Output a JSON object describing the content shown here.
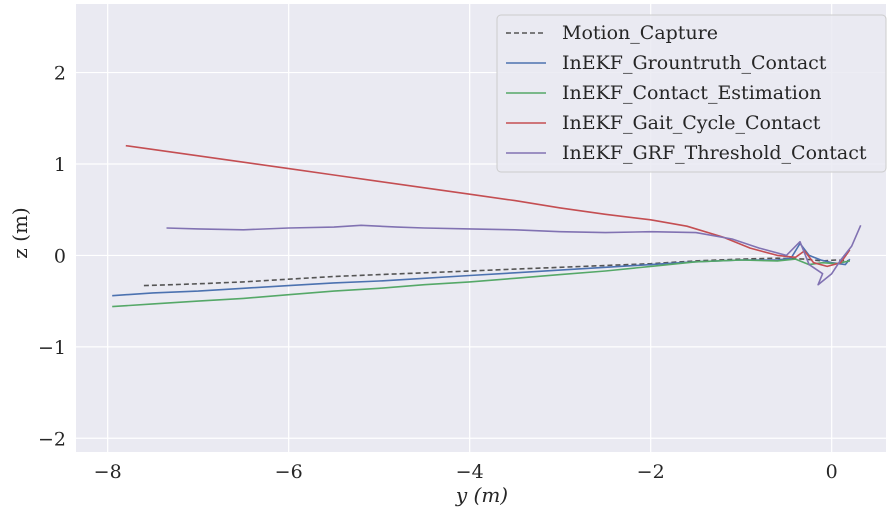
{
  "chart_data": {
    "type": "line",
    "xlabel": "y (m)",
    "ylabel": "z (m)",
    "xlim": [
      -8.35,
      0.6
    ],
    "ylim": [
      -2.15,
      2.75
    ],
    "xticks": [
      -8,
      -6,
      -4,
      -2,
      0
    ],
    "yticks": [
      -2,
      -1,
      0,
      1,
      2
    ],
    "xtick_labels": [
      "−8",
      "−6",
      "−4",
      "−2",
      "0"
    ],
    "ytick_labels": [
      "−2",
      "−1",
      "0",
      "1",
      "2"
    ],
    "grid": true,
    "legend_position": "top-right",
    "background": "#eaeaf2",
    "series": [
      {
        "name": "Motion_Capture",
        "color": "#555555",
        "dashed": true,
        "points": [
          [
            -7.6,
            -0.33
          ],
          [
            -7.0,
            -0.31
          ],
          [
            -6.5,
            -0.29
          ],
          [
            -6.0,
            -0.26
          ],
          [
            -5.5,
            -0.23
          ],
          [
            -5.0,
            -0.21
          ],
          [
            -4.5,
            -0.19
          ],
          [
            -4.0,
            -0.17
          ],
          [
            -3.5,
            -0.15
          ],
          [
            -3.0,
            -0.13
          ],
          [
            -2.5,
            -0.11
          ],
          [
            -2.0,
            -0.09
          ],
          [
            -1.5,
            -0.06
          ],
          [
            -1.0,
            -0.04
          ],
          [
            -0.6,
            -0.03
          ],
          [
            -0.3,
            -0.04
          ],
          [
            -0.1,
            -0.06
          ],
          [
            0.05,
            -0.05
          ],
          [
            0.2,
            -0.06
          ]
        ]
      },
      {
        "name": "InEKF_Grountruth_Contact",
        "color": "#4c72b0",
        "dashed": false,
        "points": [
          [
            -7.95,
            -0.44
          ],
          [
            -7.5,
            -0.41
          ],
          [
            -7.0,
            -0.39
          ],
          [
            -6.5,
            -0.36
          ],
          [
            -6.0,
            -0.33
          ],
          [
            -5.5,
            -0.3
          ],
          [
            -5.0,
            -0.28
          ],
          [
            -4.5,
            -0.25
          ],
          [
            -4.0,
            -0.22
          ],
          [
            -3.5,
            -0.19
          ],
          [
            -3.0,
            -0.16
          ],
          [
            -2.5,
            -0.13
          ],
          [
            -2.0,
            -0.1
          ],
          [
            -1.5,
            -0.07
          ],
          [
            -1.0,
            -0.05
          ],
          [
            -0.6,
            -0.05
          ],
          [
            -0.45,
            -0.03
          ],
          [
            -0.35,
            0.13
          ],
          [
            -0.25,
            0.0
          ],
          [
            -0.12,
            -0.05
          ],
          [
            0.0,
            -0.08
          ],
          [
            0.15,
            -0.1
          ],
          [
            0.2,
            -0.04
          ]
        ]
      },
      {
        "name": "InEKF_Contact_Estimation",
        "color": "#55a868",
        "dashed": false,
        "points": [
          [
            -7.95,
            -0.56
          ],
          [
            -7.5,
            -0.53
          ],
          [
            -7.0,
            -0.5
          ],
          [
            -6.5,
            -0.47
          ],
          [
            -6.0,
            -0.43
          ],
          [
            -5.5,
            -0.39
          ],
          [
            -5.0,
            -0.36
          ],
          [
            -4.5,
            -0.32
          ],
          [
            -4.0,
            -0.29
          ],
          [
            -3.5,
            -0.25
          ],
          [
            -3.0,
            -0.21
          ],
          [
            -2.5,
            -0.17
          ],
          [
            -2.0,
            -0.12
          ],
          [
            -1.5,
            -0.07
          ],
          [
            -1.0,
            -0.05
          ],
          [
            -0.6,
            -0.06
          ],
          [
            -0.4,
            -0.04
          ],
          [
            -0.25,
            -0.1
          ],
          [
            -0.1,
            -0.08
          ],
          [
            0.05,
            -0.09
          ],
          [
            0.2,
            -0.06
          ]
        ]
      },
      {
        "name": "InEKF_Gait_Cycle_Contact",
        "color": "#c44e52",
        "dashed": false,
        "points": [
          [
            -7.8,
            1.2
          ],
          [
            -7.5,
            1.16
          ],
          [
            -7.0,
            1.09
          ],
          [
            -6.5,
            1.02
          ],
          [
            -6.0,
            0.95
          ],
          [
            -5.5,
            0.88
          ],
          [
            -5.0,
            0.81
          ],
          [
            -4.5,
            0.74
          ],
          [
            -4.0,
            0.67
          ],
          [
            -3.5,
            0.6
          ],
          [
            -3.0,
            0.52
          ],
          [
            -2.5,
            0.45
          ],
          [
            -2.0,
            0.39
          ],
          [
            -1.6,
            0.32
          ],
          [
            -1.2,
            0.2
          ],
          [
            -0.9,
            0.08
          ],
          [
            -0.6,
            0.0
          ],
          [
            -0.4,
            -0.02
          ],
          [
            -0.3,
            0.05
          ],
          [
            -0.2,
            -0.08
          ],
          [
            -0.05,
            -0.12
          ],
          [
            0.1,
            -0.08
          ],
          [
            0.2,
            0.06
          ]
        ]
      },
      {
        "name": "InEKF_GRF_Threshold_Contact",
        "color": "#8172b2",
        "dashed": false,
        "points": [
          [
            -7.35,
            0.3
          ],
          [
            -7.0,
            0.29
          ],
          [
            -6.5,
            0.28
          ],
          [
            -6.0,
            0.3
          ],
          [
            -5.5,
            0.31
          ],
          [
            -5.2,
            0.33
          ],
          [
            -4.8,
            0.31
          ],
          [
            -4.5,
            0.3
          ],
          [
            -4.0,
            0.29
          ],
          [
            -3.5,
            0.28
          ],
          [
            -3.0,
            0.26
          ],
          [
            -2.5,
            0.25
          ],
          [
            -2.0,
            0.26
          ],
          [
            -1.5,
            0.25
          ],
          [
            -1.1,
            0.18
          ],
          [
            -0.8,
            0.08
          ],
          [
            -0.5,
            0.0
          ],
          [
            -0.35,
            0.15
          ],
          [
            -0.25,
            -0.1
          ],
          [
            -0.1,
            -0.2
          ],
          [
            -0.15,
            -0.32
          ],
          [
            0.0,
            -0.2
          ],
          [
            0.1,
            -0.05
          ],
          [
            0.22,
            0.1
          ],
          [
            0.32,
            0.33
          ]
        ]
      }
    ]
  }
}
